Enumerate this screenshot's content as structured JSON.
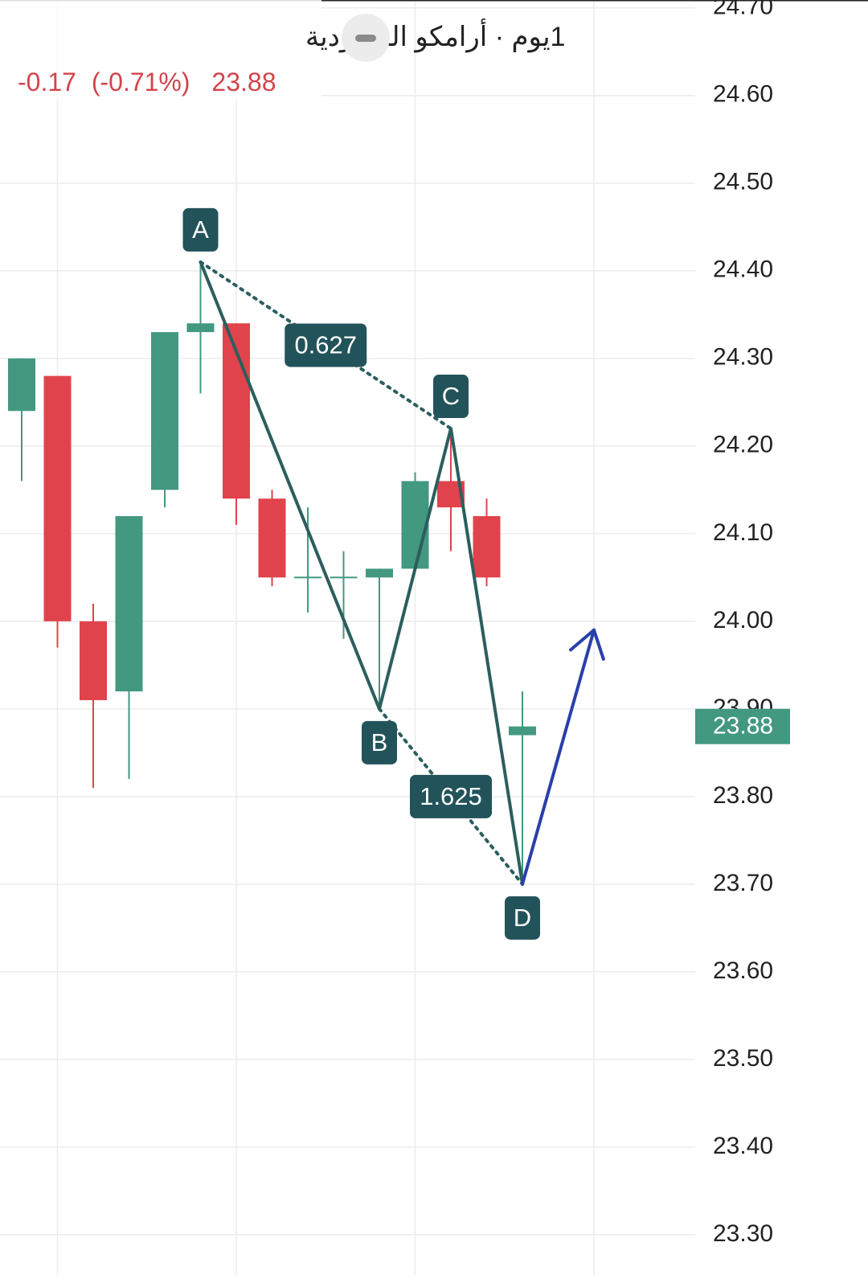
{
  "chart_data": {
    "type": "candlestick",
    "title": "1يوم · أرامكو السعودية",
    "change": -0.17,
    "change_pct": {
      "value": -0.71,
      "label": "(-0.71%)"
    },
    "last_price": 23.88,
    "up_color": "#439880",
    "down_color": "#e0434c",
    "open": [
      24.24,
      24.28,
      24.0,
      23.92,
      24.15,
      24.33,
      24.34,
      24.14,
      24.05,
      24.05,
      24.05,
      24.06,
      24.16,
      24.12,
      23.87
    ],
    "high": [
      24.3,
      24.28,
      24.02,
      24.12,
      24.33,
      24.41,
      24.34,
      24.15,
      24.13,
      24.08,
      24.06,
      24.17,
      24.22,
      24.14,
      23.92
    ],
    "low": [
      24.16,
      23.97,
      23.81,
      23.82,
      24.13,
      24.26,
      24.11,
      24.04,
      24.01,
      23.98,
      23.9,
      24.06,
      24.08,
      24.04,
      23.7
    ],
    "close": [
      24.3,
      24.0,
      23.91,
      24.12,
      24.33,
      24.34,
      24.14,
      24.05,
      24.05,
      24.05,
      24.06,
      24.16,
      24.13,
      24.05,
      23.88
    ],
    "pattern": {
      "color": "#2c5e5e",
      "points": [
        {
          "label": "A",
          "index": 5,
          "value": 24.41
        },
        {
          "label": "B",
          "index": 10,
          "value": 23.9
        },
        {
          "label": "C",
          "index": 12,
          "value": 24.22
        },
        {
          "label": "D",
          "index": 14,
          "value": 23.7
        }
      ],
      "ratios": [
        0.627,
        1.625
      ]
    },
    "projection": {
      "color": "#2a3fa8",
      "index": 16,
      "value": 23.99
    },
    "ylim": [
      23.254,
      24.709
    ],
    "yticks": [
      {
        "value": 24.7,
        "label": "24.70"
      },
      {
        "value": 24.6,
        "label": "24.60"
      },
      {
        "value": 24.5,
        "label": "24.50"
      },
      {
        "value": 24.4,
        "label": "24.40"
      },
      {
        "value": 24.3,
        "label": "24.30"
      },
      {
        "value": 24.2,
        "label": "24.20"
      },
      {
        "value": 24.1,
        "label": "24.10"
      },
      {
        "value": 24.0,
        "label": "24.00"
      },
      {
        "value": 23.9,
        "label": "23.90"
      },
      {
        "value": 23.8,
        "label": "23.80"
      },
      {
        "value": 23.7,
        "label": "23.70"
      },
      {
        "value": 23.6,
        "label": "23.60"
      },
      {
        "value": 23.5,
        "label": "23.50"
      },
      {
        "value": 23.4,
        "label": "23.40"
      },
      {
        "value": 23.3,
        "label": "23.30"
      }
    ],
    "grid": true
  }
}
